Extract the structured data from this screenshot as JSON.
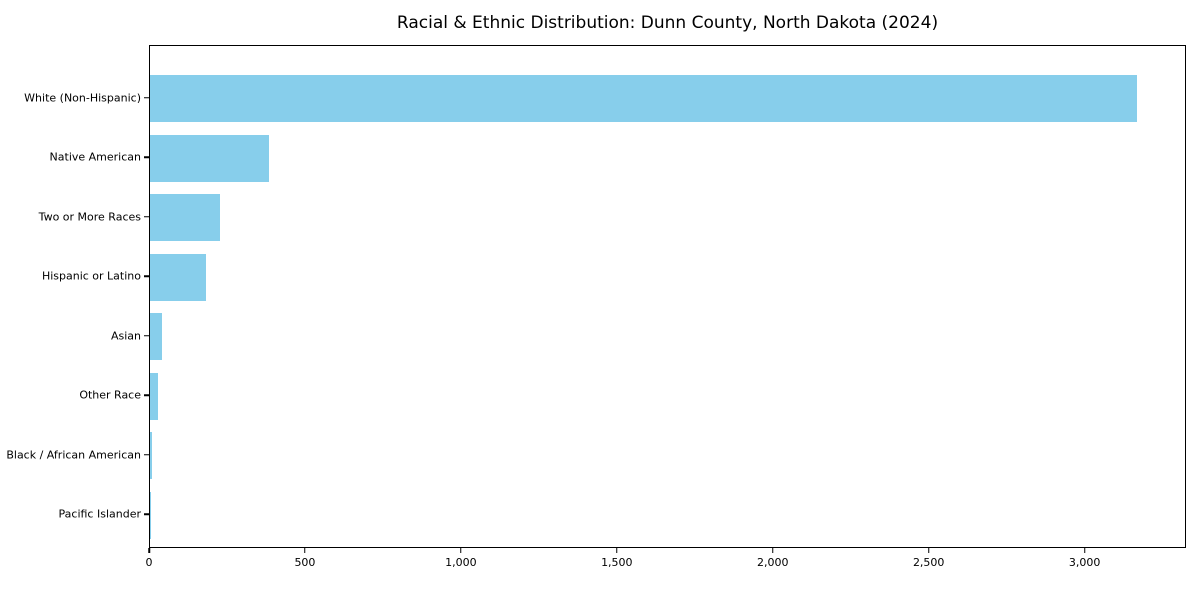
{
  "title": "Racial & Ethnic Distribution: Dunn County, North Dakota (2024)",
  "chart_data": {
    "type": "bar",
    "orientation": "horizontal",
    "title": "Racial & Ethnic Distribution: Dunn County, North Dakota (2024)",
    "categories": [
      "White (Non-Hispanic)",
      "Native American",
      "Two or More Races",
      "Hispanic or Latino",
      "Asian",
      "Other Race",
      "Black / African American",
      "Pacific Islander"
    ],
    "values": [
      3165,
      380,
      225,
      180,
      38,
      25,
      5,
      1
    ],
    "bar_color": "#87CEEB",
    "xlim": [
      0,
      3325
    ],
    "x_ticks": [
      0,
      500,
      1000,
      1500,
      2000,
      2500,
      3000
    ],
    "x_tick_labels": [
      "0",
      "500",
      "1,000",
      "1,500",
      "2,000",
      "2,500",
      "3,000"
    ],
    "xlabel": "",
    "ylabel": "",
    "grid": false,
    "legend_position": "none",
    "background_color": "#ffffff",
    "axis_color": "#000000"
  }
}
